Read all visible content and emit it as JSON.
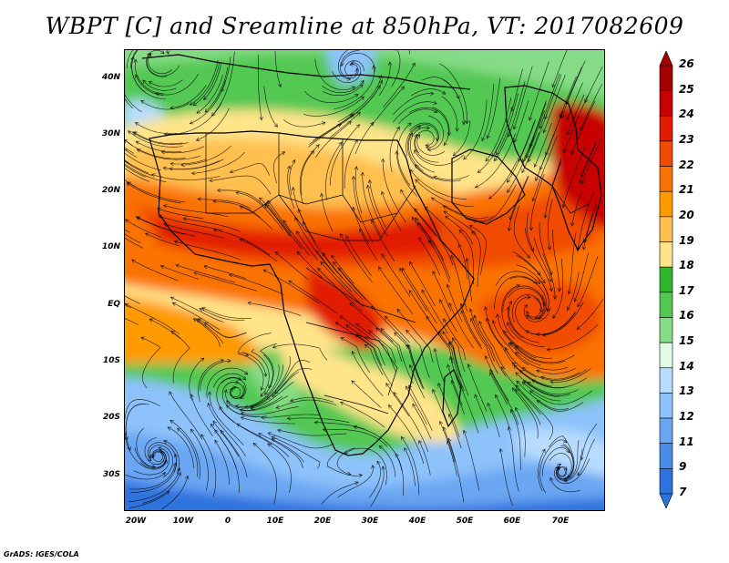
{
  "title": "WBPT [C] and Sreamline at 850hPa, VT: 2017082609",
  "credit": "GrADS: IGES/COLA",
  "lat_labels": [
    "40N",
    "30N",
    "20N",
    "10N",
    "EQ",
    "10S",
    "20S",
    "30S"
  ],
  "lon_labels": [
    "20W",
    "10W",
    "0",
    "10E",
    "20E",
    "30E",
    "40E",
    "50E",
    "60E",
    "70E"
  ],
  "colorbar": {
    "labels": [
      "26",
      "25",
      "24",
      "23",
      "22",
      "21",
      "20",
      "19",
      "18",
      "17",
      "16",
      "15",
      "14",
      "13",
      "12",
      "11",
      "9",
      "7"
    ],
    "colors": [
      "#a50000",
      "#c80000",
      "#e11a00",
      "#f04b00",
      "#fa7300",
      "#ff9b00",
      "#ffc04f",
      "#ffe48a",
      "#2fb62f",
      "#52c852",
      "#86dc86",
      "#e2fbe7",
      "#b7dcff",
      "#8ec2fb",
      "#6aa6f2",
      "#4b8ce8",
      "#2d72de"
    ]
  }
}
